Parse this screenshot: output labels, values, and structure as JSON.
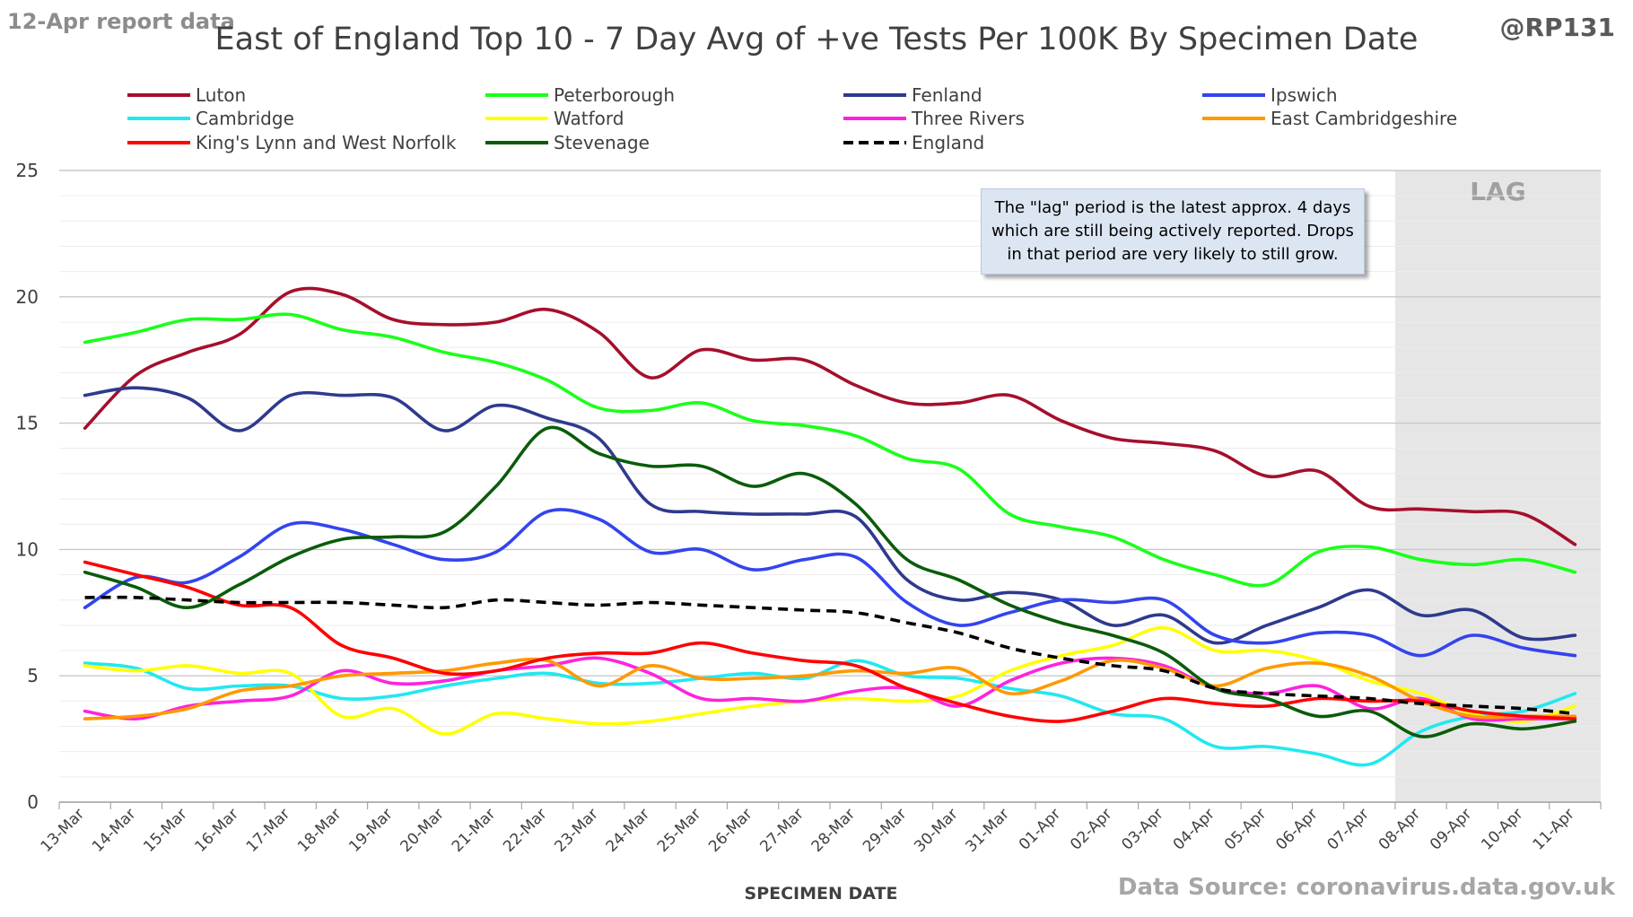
{
  "header": {
    "report_note": "12-Apr report data",
    "title": "East of England Top 10 - 7 Day Avg of +ve Tests Per 100K By Specimen Date",
    "handle": "@RP131"
  },
  "footer": {
    "source": "Data Source: coronavirus.data.gov.uk"
  },
  "annotation": {
    "text": "The \"lag\" period is the latest approx. 4 days\nwhich are still being actively reported.  Drops\nin that period are very likely to still grow.",
    "lag_label": "LAG"
  },
  "chart_data": {
    "type": "line",
    "title": "East of England Top 10 - 7 Day Avg of +ve Tests Per 100K By Specimen Date",
    "xlabel": "SPECIMEN DATE",
    "ylabel": "",
    "ylim": [
      0,
      25
    ],
    "yticks": [
      "0",
      "5",
      "10",
      "15",
      "20",
      "25"
    ],
    "grid": true,
    "legend_position": "top",
    "lag_period": [
      "08-Apr",
      "11-Apr"
    ],
    "x": [
      "13-Mar",
      "14-Mar",
      "15-Mar",
      "16-Mar",
      "17-Mar",
      "18-Mar",
      "19-Mar",
      "20-Mar",
      "21-Mar",
      "22-Mar",
      "23-Mar",
      "24-Mar",
      "25-Mar",
      "26-Mar",
      "27-Mar",
      "28-Mar",
      "29-Mar",
      "30-Mar",
      "31-Mar",
      "01-Apr",
      "02-Apr",
      "03-Apr",
      "04-Apr",
      "05-Apr",
      "06-Apr",
      "07-Apr",
      "08-Apr",
      "09-Apr",
      "10-Apr",
      "11-Apr"
    ],
    "series": [
      {
        "name": "Luton",
        "color": "#a50f2d",
        "dash": false,
        "values": [
          14.8,
          16.9,
          17.8,
          18.5,
          20.2,
          20.1,
          19.1,
          18.9,
          19.0,
          19.5,
          18.6,
          16.8,
          17.9,
          17.5,
          17.5,
          16.5,
          15.8,
          15.8,
          16.1,
          15.1,
          14.4,
          14.2,
          13.9,
          12.9,
          13.1,
          11.7,
          11.6,
          11.5,
          11.4,
          10.2
        ]
      },
      {
        "name": "Peterborough",
        "color": "#1aff1a",
        "dash": false,
        "values": [
          18.2,
          18.6,
          19.1,
          19.1,
          19.3,
          18.7,
          18.4,
          17.8,
          17.4,
          16.7,
          15.6,
          15.5,
          15.8,
          15.1,
          14.9,
          14.5,
          13.6,
          13.2,
          11.4,
          10.9,
          10.5,
          9.6,
          9.0,
          8.6,
          9.9,
          10.1,
          9.6,
          9.4,
          9.6,
          9.1
        ]
      },
      {
        "name": "Fenland",
        "color": "#2e3a8c",
        "dash": false,
        "values": [
          16.1,
          16.4,
          16.0,
          14.7,
          16.1,
          16.1,
          16.0,
          14.7,
          15.7,
          15.2,
          14.4,
          11.8,
          11.5,
          11.4,
          11.4,
          11.3,
          8.8,
          8.0,
          8.3,
          8.0,
          7.0,
          7.4,
          6.3,
          7.0,
          7.7,
          8.4,
          7.4,
          7.6,
          6.5,
          6.6
        ]
      },
      {
        "name": "Ipswich",
        "color": "#3344ee",
        "dash": false,
        "values": [
          7.7,
          8.9,
          8.7,
          9.7,
          11.0,
          10.8,
          10.2,
          9.6,
          9.9,
          11.5,
          11.2,
          9.9,
          10.0,
          9.2,
          9.6,
          9.7,
          7.9,
          7.0,
          7.5,
          8.0,
          7.9,
          8.0,
          6.6,
          6.3,
          6.7,
          6.6,
          5.8,
          6.6,
          6.1,
          5.8
        ]
      },
      {
        "name": "Cambridge",
        "color": "#22e8f0",
        "dash": false,
        "values": [
          5.5,
          5.3,
          4.5,
          4.6,
          4.6,
          4.1,
          4.2,
          4.6,
          4.9,
          5.1,
          4.7,
          4.7,
          4.9,
          5.1,
          4.9,
          5.6,
          5.0,
          4.9,
          4.5,
          4.2,
          3.5,
          3.3,
          2.2,
          2.2,
          1.9,
          1.5,
          2.8,
          3.4,
          3.6,
          4.3
        ]
      },
      {
        "name": "Watford",
        "color": "#ffff00",
        "dash": false,
        "values": [
          5.4,
          5.2,
          5.4,
          5.1,
          5.1,
          3.4,
          3.7,
          2.7,
          3.5,
          3.3,
          3.1,
          3.2,
          3.5,
          3.8,
          4.0,
          4.1,
          4.0,
          4.2,
          5.2,
          5.8,
          6.2,
          6.9,
          6.0,
          6.0,
          5.6,
          4.8,
          4.3,
          3.5,
          3.2,
          3.8
        ]
      },
      {
        "name": "Three Rivers",
        "color": "#ff22dd",
        "dash": false,
        "values": [
          3.6,
          3.3,
          3.8,
          4.0,
          4.2,
          5.2,
          4.7,
          4.8,
          5.2,
          5.4,
          5.7,
          5.1,
          4.1,
          4.1,
          4.0,
          4.4,
          4.5,
          3.8,
          4.8,
          5.5,
          5.7,
          5.4,
          4.5,
          4.3,
          4.6,
          3.7,
          4.1,
          3.3,
          3.3,
          3.3
        ]
      },
      {
        "name": "East Cambridgeshire",
        "color": "#ff9900",
        "dash": false,
        "values": [
          3.3,
          3.4,
          3.7,
          4.4,
          4.6,
          5.0,
          5.1,
          5.2,
          5.5,
          5.6,
          4.6,
          5.4,
          4.9,
          4.9,
          5.0,
          5.2,
          5.1,
          5.3,
          4.3,
          4.8,
          5.6,
          5.3,
          4.6,
          5.3,
          5.5,
          5.0,
          4.0,
          3.4,
          3.4,
          3.4
        ]
      },
      {
        "name": "King's Lynn and West Norfolk",
        "color": "#ff0000",
        "dash": false,
        "values": [
          9.5,
          9.0,
          8.5,
          7.8,
          7.7,
          6.2,
          5.7,
          5.1,
          5.2,
          5.7,
          5.9,
          5.9,
          6.3,
          5.9,
          5.6,
          5.4,
          4.5,
          3.9,
          3.4,
          3.2,
          3.6,
          4.1,
          3.9,
          3.8,
          4.1,
          4.0,
          4.0,
          3.6,
          3.4,
          3.3
        ]
      },
      {
        "name": "Stevenage",
        "color": "#0a5c0a",
        "dash": false,
        "values": [
          9.1,
          8.5,
          7.7,
          8.6,
          9.7,
          10.4,
          10.5,
          10.7,
          12.5,
          14.8,
          13.8,
          13.3,
          13.3,
          12.5,
          13.0,
          11.8,
          9.6,
          8.8,
          7.8,
          7.1,
          6.6,
          5.9,
          4.5,
          4.1,
          3.4,
          3.6,
          2.6,
          3.1,
          2.9,
          3.2
        ]
      },
      {
        "name": "England",
        "color": "#000000",
        "dash": true,
        "values": [
          8.1,
          8.1,
          8.0,
          7.9,
          7.9,
          7.9,
          7.8,
          7.7,
          8.0,
          7.9,
          7.8,
          7.9,
          7.8,
          7.7,
          7.6,
          7.5,
          7.1,
          6.7,
          6.1,
          5.7,
          5.4,
          5.2,
          4.5,
          4.3,
          4.2,
          4.1,
          3.9,
          3.8,
          3.7,
          3.5
        ]
      }
    ]
  }
}
